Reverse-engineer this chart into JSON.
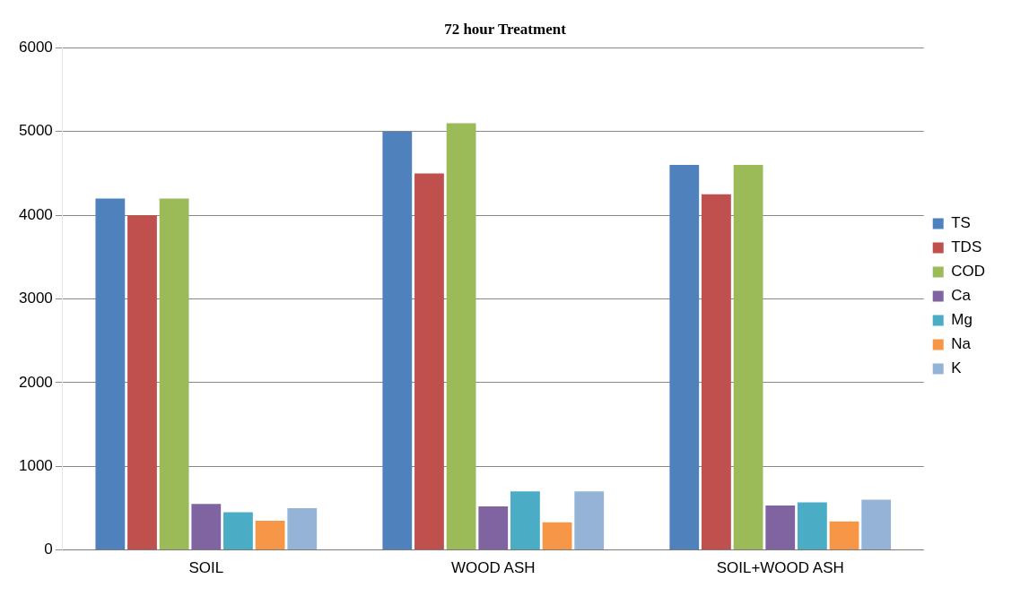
{
  "chart_data": {
    "type": "bar",
    "title": "72 hour Treatment",
    "categories": [
      "SOIL",
      "WOOD ASH",
      "SOIL+WOOD ASH"
    ],
    "series": [
      {
        "name": "TS",
        "color": "#4f81bd",
        "values": [
          4200,
          5000,
          4600
        ]
      },
      {
        "name": "TDS",
        "color": "#c0504d",
        "values": [
          4000,
          4500,
          4250
        ]
      },
      {
        "name": "COD",
        "color": "#9bbb59",
        "values": [
          4200,
          5100,
          4600
        ]
      },
      {
        "name": "Ca",
        "color": "#8064a2",
        "values": [
          550,
          520,
          530
        ]
      },
      {
        "name": "Mg",
        "color": "#4bacc6",
        "values": [
          450,
          700,
          570
        ]
      },
      {
        "name": "Na",
        "color": "#f79646",
        "values": [
          350,
          330,
          340
        ]
      },
      {
        "name": "K",
        "color": "#95b3d7",
        "values": [
          500,
          700,
          600
        ]
      }
    ],
    "ylim": [
      0,
      6000
    ],
    "yticks": [
      0,
      1000,
      2000,
      3000,
      4000,
      5000,
      6000
    ],
    "grid": "y",
    "legend": "right"
  }
}
